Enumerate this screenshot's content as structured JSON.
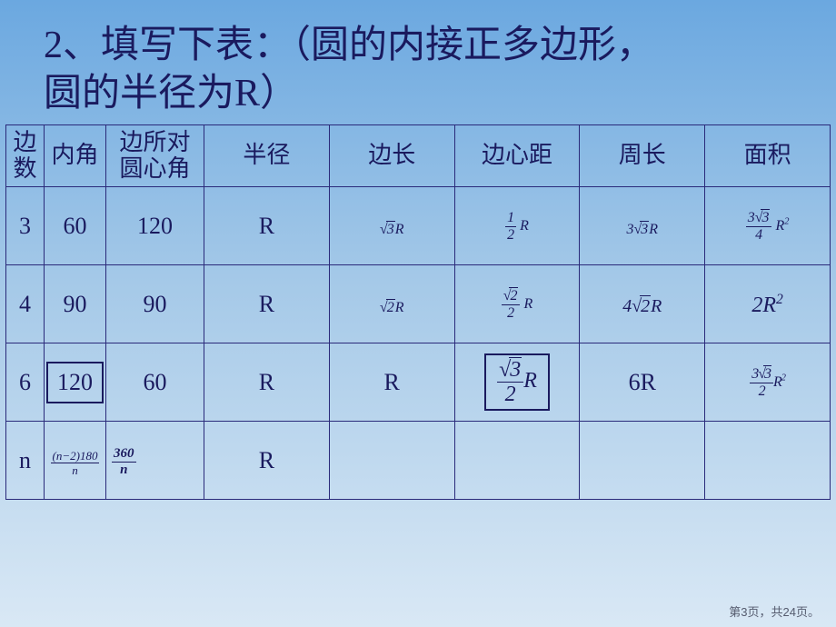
{
  "title_line1": "2、填写下表：（圆的内接正多边形，",
  "title_line2": "圆的半径为R）",
  "headers": {
    "sides": "边数",
    "interior_angle": "内角",
    "central_angle": "边所对圆心角",
    "radius": "半径",
    "side_length": "边长",
    "apothem": "边心距",
    "perimeter": "周长",
    "area": "面积"
  },
  "rows": [
    {
      "sides": "3",
      "interior_angle": "60",
      "central_angle": "120",
      "radius": "R",
      "side_length_html": "<span class='math'><span class='sqrt'><span class='rad'>3</span></span>R</span>",
      "apothem_html": "<span class='math'><span class='frac'><span class='num'>1</span><span class='den'>2</span></span> R</span>",
      "perimeter_html": "<span class='math'>3<span class='sqrt'><span class='rad'>3</span></span>R</span>",
      "area_html": "<span class='math'><span class='frac'><span class='num'>3<span class='sqrt'><span class='rad'>3</span></span></span><span class='den'>4</span></span> R<span class='sup'>2</span></span>"
    },
    {
      "sides": "4",
      "interior_angle": "90",
      "central_angle": "90",
      "radius": "R",
      "side_length_html": "<span class='math'><span class='sqrt'><span class='rad'>2</span></span>R</span>",
      "apothem_html": "<span class='math'><span class='frac'><span class='num'><span class='sqrt'><span class='rad'>2</span></span></span><span class='den'>2</span></span> R</span>",
      "perimeter_html": "<span class='math-md'>4<span class='sqrt'><span class='rad'>2</span></span>R</span>",
      "area_html": "<span class='math-lg'>2R<span class='sup'>2</span></span>"
    },
    {
      "sides": "6",
      "interior_angle": "120",
      "central_angle": "60",
      "radius": "R",
      "side_length": "R",
      "apothem_html": "<span class='math-lg'><span class='frac'><span class='num'><span class='sqrt'><span class='rad'>3</span></span></span><span class='den'>2</span></span>R</span>",
      "perimeter": "6R",
      "area_html": "<span class='math' style='letter-spacing:-1px;'><span class='frac'><span class='num'>3<span class='sqrt'><span class='rad'>3</span></span></span><span class='den'>2</span></span>R<span class='sup'>2</span></span>"
    },
    {
      "sides": "n",
      "interior_angle_html": "<span class='math' style='font-size:13px;'><span class='frac'><span class='num'>(n−2)180</span><span class='den'>n</span></span></span>",
      "central_angle_html": "<span class='math' style='font-size:15px;font-weight:bold;'><span class='frac'><span class='num'>360</span><span class='den'>n</span></span></span>",
      "radius": "R",
      "side_length": "",
      "apothem": "",
      "perimeter": "",
      "area": ""
    }
  ],
  "footer": "第3页，共24页。",
  "colors": {
    "text": "#1a1a5e",
    "border": "#2a2a7a",
    "bg_top": "#6ba8e0",
    "bg_mid": "#a5c9e8",
    "bg_bottom": "#d9e8f5"
  }
}
